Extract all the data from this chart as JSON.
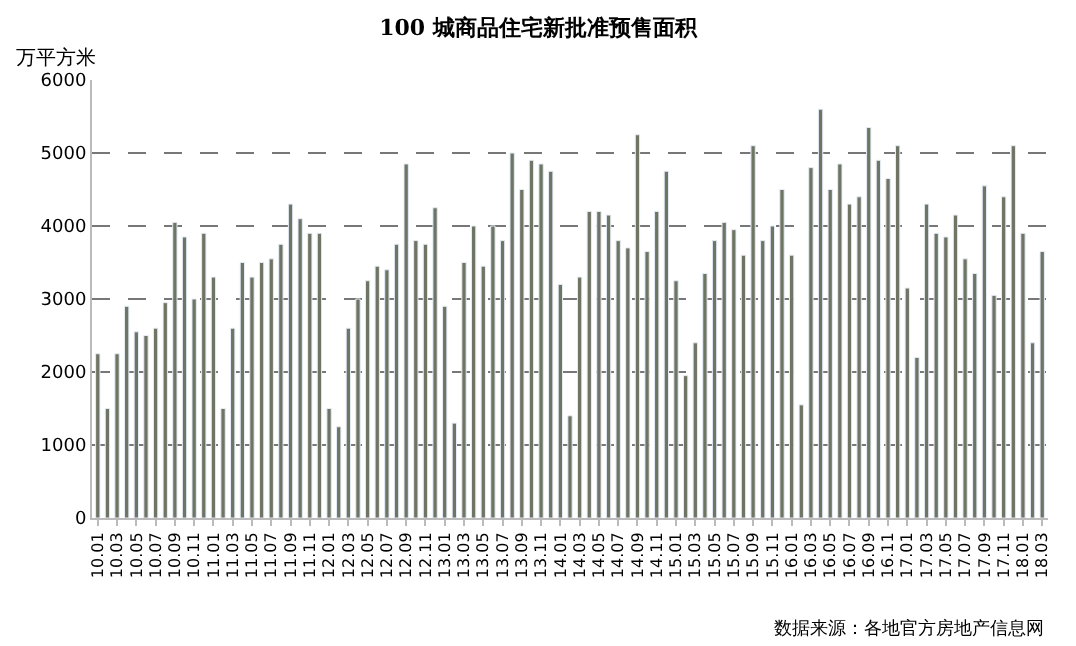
{
  "chart_data": {
    "type": "bar",
    "title": "100 城商品住宅新批准预售面积",
    "ylabel": "万平方米",
    "categories": [
      "10.01",
      null,
      "10.03",
      null,
      "10.05",
      null,
      "10.07",
      null,
      "10.09",
      null,
      "10.11",
      null,
      "11.01",
      null,
      "11.03",
      null,
      "11.05",
      null,
      "11.07",
      null,
      "11.09",
      null,
      "11.11",
      null,
      "12.01",
      null,
      "12.03",
      null,
      "12.05",
      null,
      "12.07",
      null,
      "12.09",
      null,
      "12.11",
      null,
      "13.01",
      null,
      "13.03",
      null,
      "13.05",
      null,
      "13.07",
      null,
      "13.09",
      null,
      "13.11",
      null,
      "14.01",
      null,
      "14.03",
      null,
      "14.05",
      null,
      "14.07",
      null,
      "14.09",
      null,
      "14.11",
      null,
      "15.01",
      null,
      "15.03",
      null,
      "15.05",
      null,
      "15.07",
      null,
      "15.09",
      null,
      "15.11",
      null,
      "16.01",
      null,
      "16.03",
      null,
      "16.05",
      null,
      "16.07",
      null,
      "16.09",
      null,
      "16.11",
      null,
      "17.01",
      null,
      "17.03",
      null,
      "17.05",
      null,
      "17.07",
      null,
      "17.09",
      null,
      "17.11",
      null,
      "18.01",
      null,
      "18.03"
    ],
    "values": [
      2250,
      1500,
      2250,
      2900,
      2550,
      2500,
      2600,
      2950,
      4050,
      3850,
      3000,
      3900,
      3300,
      1500,
      2600,
      3500,
      3300,
      3500,
      3550,
      3750,
      4300,
      4100,
      3900,
      3900,
      1500,
      1250,
      2600,
      3000,
      3250,
      3450,
      3400,
      3750,
      4850,
      3800,
      3750,
      4250,
      2900,
      1300,
      3500,
      4000,
      3450,
      4000,
      3800,
      5000,
      4500,
      4900,
      4850,
      4750,
      3200,
      1400,
      3300,
      4200,
      4200,
      4150,
      3800,
      3700,
      5250,
      3650,
      4200,
      4750,
      3250,
      1950,
      2400,
      3350,
      3800,
      4050,
      3950,
      3600,
      5100,
      3800,
      4000,
      4500,
      3600,
      1550,
      4800,
      5600,
      4500,
      4850,
      4300,
      4400,
      5350,
      4900,
      4650,
      5100,
      3150,
      2200,
      4300,
      3900,
      3850,
      4150,
      3550,
      3350,
      4550,
      3050,
      4400,
      5100,
      3900,
      2400,
      3650
    ],
    "color": "#6f7565",
    "ylim": [
      0,
      6000
    ],
    "yticks": [
      0,
      1000,
      2000,
      3000,
      4000,
      5000,
      6000
    ],
    "grid": "y",
    "annotations": [
      "数据来源：各地官方房地产信息网"
    ]
  }
}
